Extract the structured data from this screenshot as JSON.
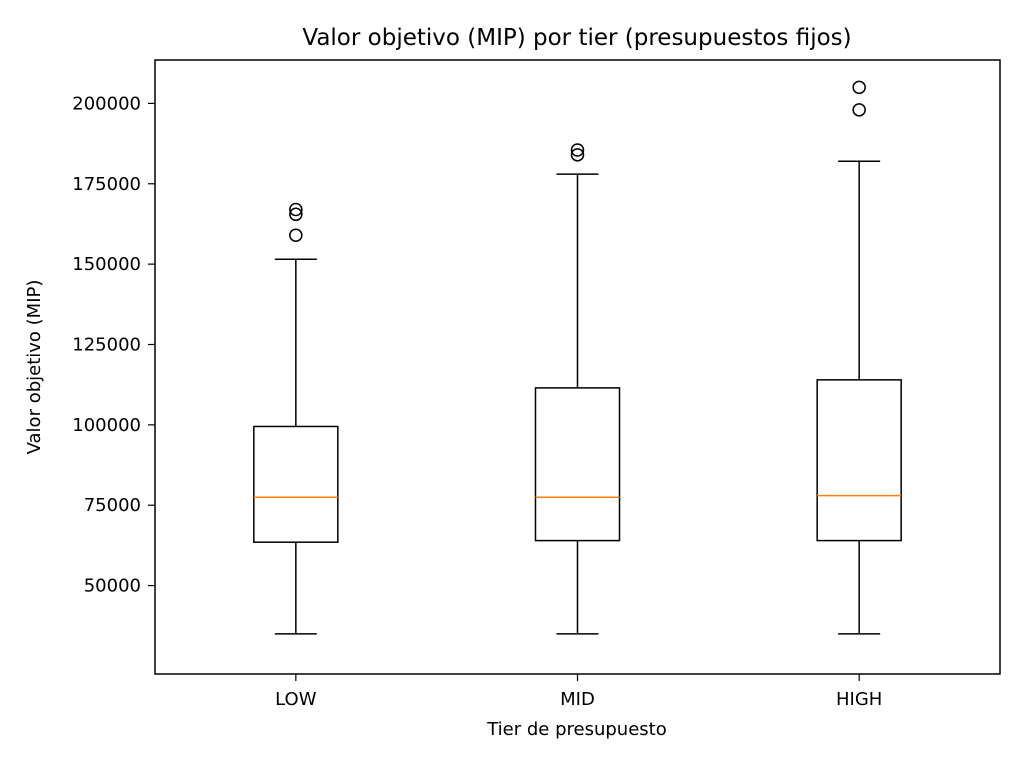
{
  "chart_data": {
    "type": "boxplot",
    "title": "Valor objetivo (MIP) por tier (presupuestos fijos)",
    "xlabel": "Tier de presupuesto",
    "ylabel": "Valor objetivo (MIP)",
    "categories": [
      "LOW",
      "MID",
      "HIGH"
    ],
    "ylim": [
      22500,
      213500
    ],
    "yticks": [
      50000,
      75000,
      100000,
      125000,
      150000,
      175000,
      200000
    ],
    "grid": false,
    "legend": "none",
    "boxes": [
      {
        "category": "LOW",
        "whisker_low": 35000,
        "q1": 63500,
        "median": 77500,
        "q3": 99500,
        "whisker_high": 151500,
        "outliers": [
          159000,
          165500,
          167000
        ]
      },
      {
        "category": "MID",
        "whisker_low": 35000,
        "q1": 64000,
        "median": 77500,
        "q3": 111500,
        "whisker_high": 178000,
        "outliers": [
          184000,
          185500
        ]
      },
      {
        "category": "HIGH",
        "whisker_low": 35000,
        "q1": 64000,
        "median": 78000,
        "q3": 114000,
        "whisker_high": 182000,
        "outliers": [
          198000,
          205000
        ]
      }
    ],
    "colors": {
      "box": "#000000",
      "median": "#ff7f0e",
      "outlier": "#000000",
      "background": "#ffffff"
    }
  }
}
